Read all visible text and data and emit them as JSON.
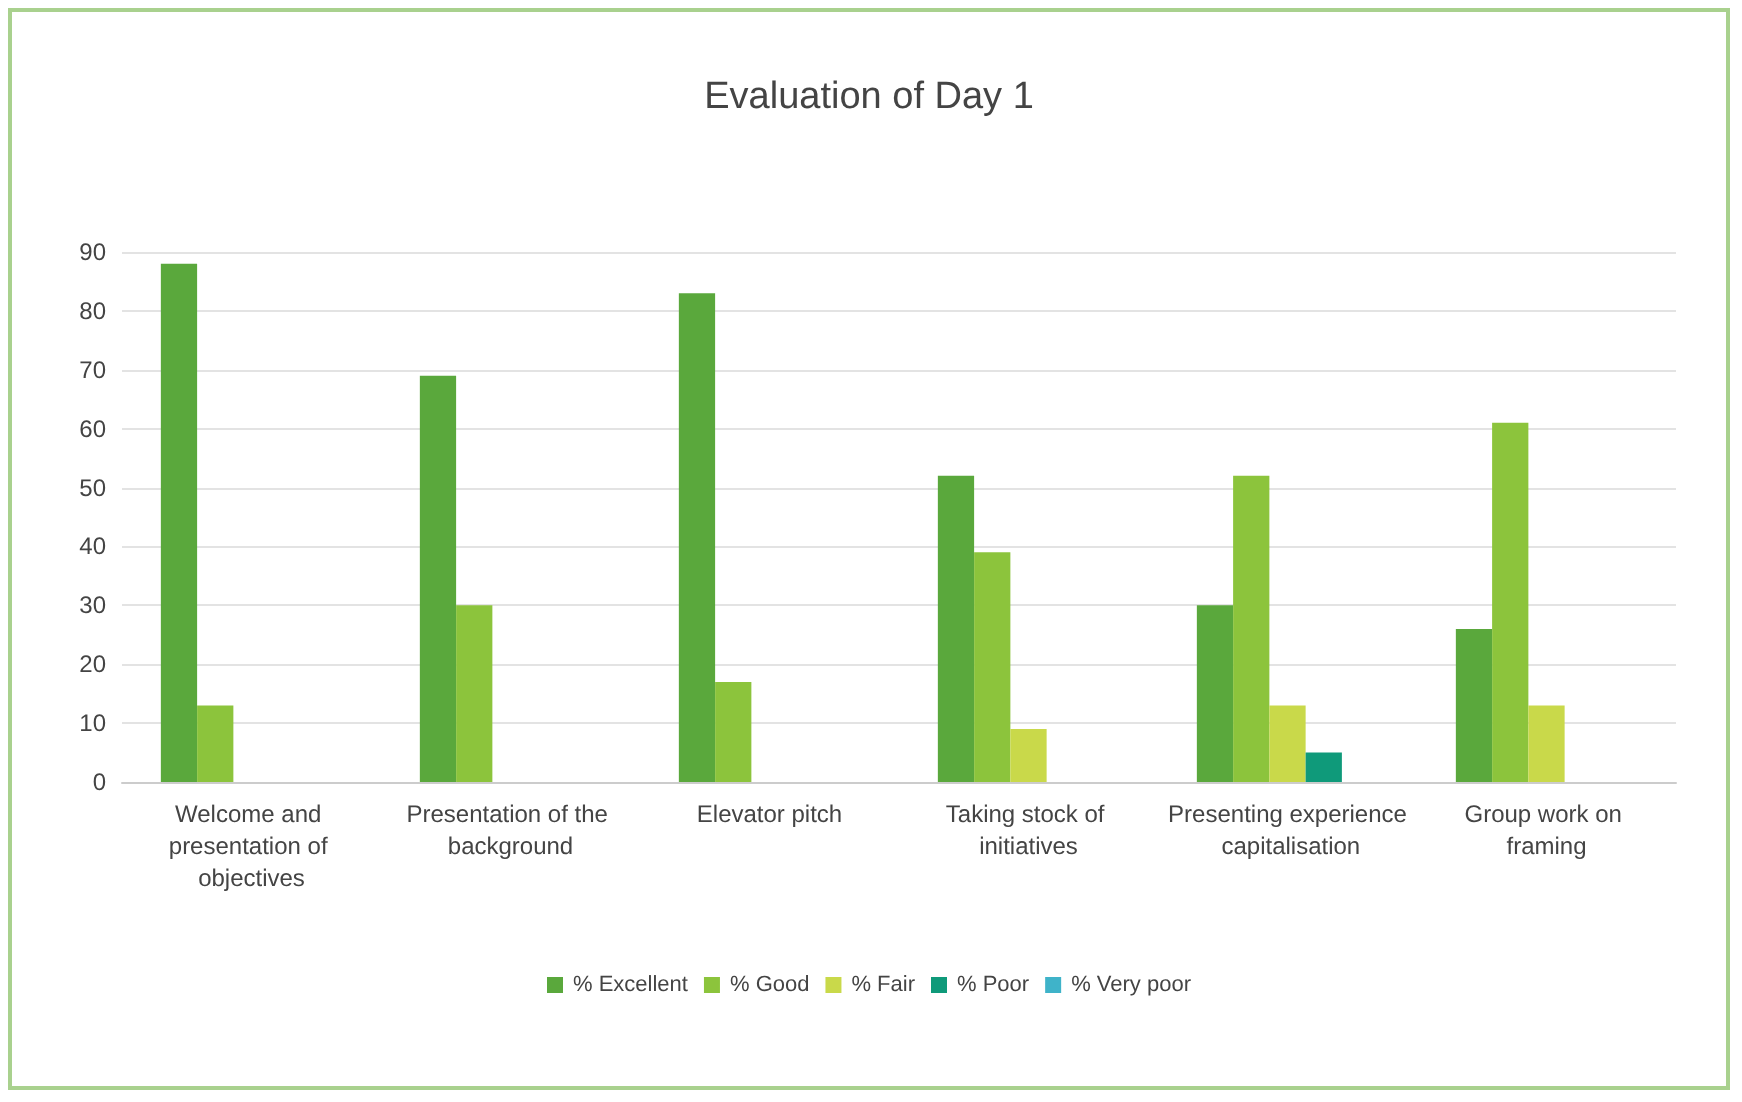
{
  "chart_data": {
    "type": "bar",
    "title": "Evaluation of Day 1",
    "categories": [
      "Welcome and presentation of objectives",
      "Presentation of the background",
      "Elevator pitch",
      "Taking stock of initiatives",
      "Presenting experience capitalisation",
      "Group work on framing"
    ],
    "series": [
      {
        "name": "% Excellent",
        "color": "#5aa83c",
        "values": [
          88,
          69,
          83,
          52,
          30,
          26
        ]
      },
      {
        "name": "% Good",
        "color": "#8cc43c",
        "values": [
          13,
          30,
          17,
          39,
          52,
          61
        ]
      },
      {
        "name": "% Fair",
        "color": "#c9d94a",
        "values": [
          0,
          0,
          0,
          9,
          13,
          13
        ]
      },
      {
        "name": "% Poor",
        "color": "#0f9a7a",
        "values": [
          0,
          0,
          0,
          0,
          5,
          0
        ]
      },
      {
        "name": "% Very poor",
        "color": "#3fb3c9",
        "values": [
          0,
          0,
          0,
          0,
          0,
          0
        ]
      }
    ],
    "ylim": [
      0,
      90
    ],
    "yticks": [
      0,
      10,
      20,
      30,
      40,
      50,
      60,
      70,
      80,
      90
    ],
    "grid": "y",
    "legend": "bottom"
  }
}
